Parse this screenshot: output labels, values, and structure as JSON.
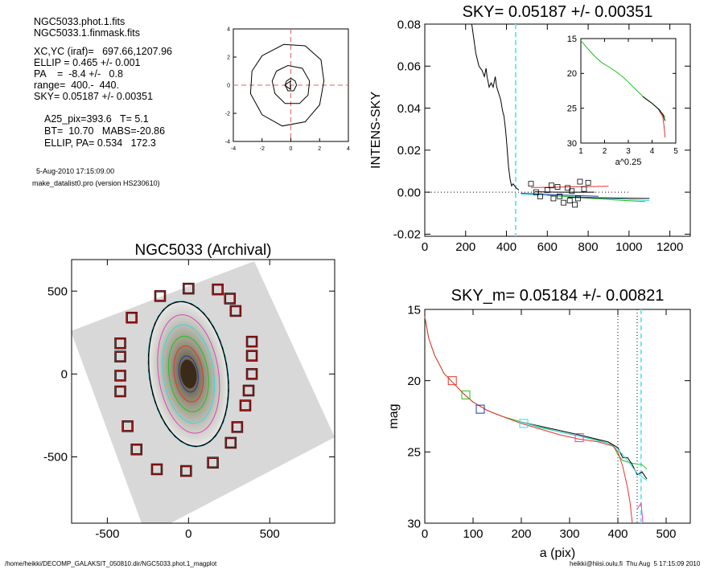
{
  "info": {
    "lines": [
      "NGC5033.phot.1.fits",
      "NGC5033.1.finmask.fits",
      "XC,YC (iraf)=   697.66,1207.96",
      "ELLIP = 0.465 +/- 0.001",
      "PA    =  -8.4 +/-   0.8",
      "range=  400.-  440.",
      "SKY= 0.05187 +/- 0.00351",
      "A25_pix=393.6   T= 5.1",
      "BT=  10.70   MABS=-20.86",
      "ELLIP, PA= 0.534   172.3",
      "5-Aug-2010 17:15:09.00",
      "make_datalist0.pro (version HS230610)"
    ]
  },
  "footer": {
    "left": "/home/heikki/DECOMP_GALAKSIT_050810.dir/NGC5033.phot.1_magplot",
    "right": "heikki@hiisi.oulu.fi  Thu Aug  5 17:15:09 2010"
  },
  "colors": {
    "black": "#000000",
    "red": "#e8322b",
    "green": "#1fc21f",
    "cyan": "#33d9e6",
    "blue": "#2233aa",
    "magenta": "#e040c0",
    "dashcyan": "#6fe6f0",
    "pink": "#e06060"
  },
  "chart_data": [
    {
      "id": "center_plot",
      "type": "line",
      "title": "",
      "xlabel": "",
      "ylabel": "",
      "xlim": [
        -4,
        4
      ],
      "ylim": [
        -4,
        4
      ],
      "xticks": [
        "-4",
        "-2",
        "0",
        "2",
        "4"
      ],
      "yticks": [
        "-4",
        "-2",
        "0",
        "2",
        "4"
      ],
      "contours": [
        [
          [
            -0.3,
            0.3
          ],
          [
            0,
            0.5
          ],
          [
            0.3,
            0.3
          ],
          [
            0.4,
            0
          ],
          [
            0.2,
            -0.4
          ],
          [
            -0.2,
            -0.4
          ],
          [
            -0.4,
            0
          ],
          [
            -0.3,
            0.3
          ]
        ],
        [
          [
            -1.0,
            1.0
          ],
          [
            -0.2,
            1.4
          ],
          [
            0.8,
            1.2
          ],
          [
            1.3,
            0.3
          ],
          [
            1.2,
            -0.7
          ],
          [
            0.6,
            -1.3
          ],
          [
            -0.4,
            -1.3
          ],
          [
            -1.1,
            -0.6
          ],
          [
            -1.3,
            0.3
          ],
          [
            -1.0,
            1.0
          ]
        ],
        [
          [
            -2.0,
            2.1
          ],
          [
            -0.5,
            2.9
          ],
          [
            1.0,
            2.8
          ],
          [
            2.1,
            1.8
          ],
          [
            2.3,
            0.3
          ],
          [
            2.0,
            -1.4
          ],
          [
            1.0,
            -2.6
          ],
          [
            -0.6,
            -2.9
          ],
          [
            -2.0,
            -2.1
          ],
          [
            -2.8,
            -0.6
          ],
          [
            -2.7,
            1.0
          ],
          [
            -2.0,
            2.1
          ]
        ]
      ]
    },
    {
      "id": "sky_plot",
      "type": "line",
      "title": "SKY= 0.05187 +/- 0.00351",
      "xlabel": "",
      "ylabel": "INTENS-SKY",
      "xlim": [
        0,
        1300
      ],
      "ylim": [
        -0.021,
        0.08
      ],
      "xticks": [
        "0",
        "200",
        "400",
        "600",
        "800",
        "1000",
        "1200"
      ],
      "yticks": [
        "-0.02",
        "0.00",
        "0.02",
        "0.04",
        "0.06",
        "0.08"
      ],
      "vline": 445,
      "series": [
        {
          "color": "black",
          "values": [
            [
              230,
              0.08
            ],
            [
              250,
              0.066
            ],
            [
              265,
              0.06
            ],
            [
              280,
              0.058
            ],
            [
              292,
              0.055
            ],
            [
              300,
              0.059
            ],
            [
              305,
              0.055
            ],
            [
              315,
              0.05
            ],
            [
              325,
              0.052
            ],
            [
              335,
              0.05
            ],
            [
              345,
              0.055
            ],
            [
              352,
              0.05
            ],
            [
              362,
              0.047
            ],
            [
              372,
              0.044
            ],
            [
              380,
              0.039
            ],
            [
              388,
              0.036
            ],
            [
              395,
              0.03
            ],
            [
              400,
              0.025
            ],
            [
              410,
              0.012
            ],
            [
              418,
              0.006
            ],
            [
              425,
              0.003
            ],
            [
              432,
              0.004
            ],
            [
              440,
              0.003
            ],
            [
              448,
              0.002
            ],
            [
              455,
              0.0015
            ],
            [
              460,
              0.001
            ]
          ]
        },
        {
          "color": "red",
          "values": [
            [
              520,
              0.0022
            ],
            [
              900,
              0.0028
            ]
          ]
        },
        {
          "color": "black",
          "values": [
            [
              540,
              0.0002
            ],
            [
              650,
              0.0
            ],
            [
              780,
              0.0
            ],
            [
              830,
              0.0
            ]
          ]
        },
        {
          "color": "blue",
          "values": [
            [
              470,
              -0.0005
            ],
            [
              700,
              -0.0015
            ],
            [
              850,
              -0.002
            ]
          ]
        },
        {
          "color": "cyan",
          "values": [
            [
              470,
              -0.001
            ],
            [
              800,
              -0.0025
            ],
            [
              1100,
              -0.004
            ]
          ]
        },
        {
          "color": "green",
          "values": [
            [
              600,
              -0.0015
            ],
            [
              900,
              -0.0035
            ],
            [
              1080,
              -0.0045
            ]
          ]
        },
        {
          "color": "black",
          "values": [
            [
              700,
              -0.0025
            ],
            [
              1100,
              -0.003
            ]
          ]
        }
      ],
      "squares": [
        [
          520,
          0.004
        ],
        [
          545,
          0.0
        ],
        [
          565,
          -0.002
        ],
        [
          600,
          0.001
        ],
        [
          620,
          0.0032
        ],
        [
          630,
          -0.003
        ],
        [
          650,
          0.0025
        ],
        [
          660,
          -0.002
        ],
        [
          680,
          -0.005
        ],
        [
          700,
          0.002
        ],
        [
          710,
          -0.004
        ],
        [
          720,
          0.0005
        ],
        [
          735,
          -0.006
        ],
        [
          750,
          -0.003
        ],
        [
          760,
          0.005
        ],
        [
          780,
          0.0015
        ],
        [
          800,
          0.0045
        ]
      ],
      "inset": {
        "xlabel": "a^0.25",
        "xlim": [
          1,
          5
        ],
        "ylim": [
          30,
          15
        ],
        "xticks": [
          "1",
          "2",
          "3",
          "4",
          "5"
        ],
        "yticks": [
          "15",
          "20",
          "25",
          "30"
        ],
        "series": [
          {
            "color": "green",
            "values": [
              [
                1.0,
                15.3
              ],
              [
                1.3,
                16.5
              ],
              [
                1.6,
                17.6
              ],
              [
                1.9,
                18.5
              ],
              [
                2.2,
                19.1
              ],
              [
                2.5,
                19.8
              ],
              [
                2.8,
                20.6
              ],
              [
                3.1,
                21.6
              ],
              [
                3.4,
                22.6
              ],
              [
                3.7,
                23.6
              ],
              [
                4.0,
                24.3
              ],
              [
                4.2,
                24.9
              ],
              [
                4.35,
                25.5
              ],
              [
                4.45,
                25.8
              ],
              [
                4.55,
                26.3
              ]
            ]
          },
          {
            "color": "black",
            "values": [
              [
                3.6,
                23.3
              ],
              [
                4.0,
                24.3
              ],
              [
                4.3,
                25.2
              ],
              [
                4.45,
                25.9
              ],
              [
                4.55,
                26.8
              ]
            ]
          },
          {
            "color": "red",
            "values": [
              [
                4.3,
                25.4
              ],
              [
                4.45,
                26.2
              ],
              [
                4.5,
                27.5
              ],
              [
                4.55,
                29.2
              ]
            ]
          }
        ]
      }
    },
    {
      "id": "image_panel",
      "type": "scatter",
      "title": "NGC5033 (Archival)",
      "xlabel": "",
      "ylabel": "",
      "xlim": [
        -720,
        900
      ],
      "ylim": [
        -900,
        690
      ],
      "xticks": [
        "-500",
        "0",
        "500"
      ],
      "yticks": [
        "-500",
        "0",
        "500"
      ],
      "sky_boxes": [
        [
          0,
          515
        ],
        [
          -175,
          470
        ],
        [
          180,
          510
        ],
        [
          255,
          455
        ],
        [
          290,
          380
        ],
        [
          -350,
          340
        ],
        [
          -420,
          185
        ],
        [
          -420,
          105
        ],
        [
          -420,
          -10
        ],
        [
          -420,
          -105
        ],
        [
          390,
          195
        ],
        [
          390,
          110
        ],
        [
          390,
          0
        ],
        [
          370,
          -100
        ],
        [
          350,
          -190
        ],
        [
          300,
          -320
        ],
        [
          260,
          -415
        ],
        [
          150,
          -535
        ],
        [
          -15,
          -585
        ],
        [
          -195,
          -575
        ],
        [
          -320,
          -455
        ],
        [
          -375,
          -315
        ]
      ],
      "ellipses": [
        {
          "color": "black",
          "a": 440,
          "b": 240
        },
        {
          "color": "dashcyan",
          "a": 445,
          "b": 245
        },
        {
          "color": "magenta",
          "a": 360,
          "b": 185
        },
        {
          "color": "cyan",
          "a": 300,
          "b": 155
        },
        {
          "color": "green",
          "a": 230,
          "b": 120
        },
        {
          "color": "red",
          "a": 170,
          "b": 88
        },
        {
          "color": "blue",
          "a": 110,
          "b": 58
        }
      ]
    },
    {
      "id": "mag_plot",
      "type": "line",
      "title": "SKY_m=  0.05184 +/- 0.00821",
      "xlabel": "a (pix)",
      "ylabel": "mag",
      "xlim": [
        0,
        550
      ],
      "ylim": [
        30,
        15
      ],
      "xticks": [
        "0",
        "100",
        "200",
        "300",
        "400",
        "500"
      ],
      "yticks": [
        "15",
        "20",
        "25",
        "30"
      ],
      "vlines_dotted": [
        400,
        440
      ],
      "vline_dashed": 448,
      "series": [
        {
          "color": "green",
          "values": [
            [
              0,
              15.5
            ],
            [
              8,
              17.0
            ],
            [
              20,
              18.2
            ],
            [
              40,
              19.5
            ],
            [
              60,
              20.2
            ],
            [
              80,
              20.9
            ],
            [
              100,
              21.5
            ],
            [
              130,
              22.1
            ],
            [
              160,
              22.5
            ],
            [
              200,
              22.9
            ],
            [
              240,
              23.3
            ],
            [
              280,
              23.6
            ],
            [
              320,
              23.9
            ],
            [
              360,
              24.2
            ],
            [
              390,
              24.5
            ],
            [
              400,
              25.2
            ],
            [
              410,
              25.6
            ],
            [
              430,
              25.8
            ],
            [
              450,
              25.9
            ],
            [
              460,
              26.2
            ]
          ]
        },
        {
          "color": "black",
          "values": [
            [
              200,
              22.9
            ],
            [
              280,
              23.5
            ],
            [
              320,
              23.8
            ],
            [
              380,
              24.3
            ],
            [
              400,
              24.7
            ],
            [
              410,
              25.4
            ],
            [
              420,
              25.4
            ],
            [
              430,
              25.9
            ],
            [
              440,
              26.6
            ],
            [
              450,
              26.4
            ],
            [
              460,
              26.9
            ]
          ]
        },
        {
          "color": "cyan",
          "values": [
            [
              200,
              22.9
            ],
            [
              280,
              23.6
            ],
            [
              320,
              23.9
            ],
            [
              380,
              24.4
            ],
            [
              400,
              24.8
            ],
            [
              420,
              25.6
            ],
            [
              440,
              26.5
            ],
            [
              460,
              27.0
            ]
          ]
        },
        {
          "color": "red",
          "values": [
            [
              0,
              15.5
            ],
            [
              8,
              17.0
            ],
            [
              20,
              18.2
            ],
            [
              40,
              19.5
            ],
            [
              60,
              20.2
            ],
            [
              80,
              20.9
            ],
            [
              100,
              21.5
            ],
            [
              130,
              22.1
            ],
            [
              160,
              22.5
            ],
            [
              200,
              23.0
            ],
            [
              240,
              23.4
            ],
            [
              280,
              23.8
            ],
            [
              320,
              24.1
            ],
            [
              360,
              24.3
            ],
            [
              390,
              24.6
            ],
            [
              400,
              25.0
            ],
            [
              410,
              26.0
            ],
            [
              420,
              27.5
            ],
            [
              425,
              28.5
            ],
            [
              430,
              30
            ]
          ]
        },
        {
          "color": "magenta",
          "values": [
            [
              440,
              29.0
            ],
            [
              448,
              28.6
            ],
            [
              452,
              30
            ]
          ]
        }
      ],
      "squares": [
        {
          "color": "red",
          "x": 57,
          "y": 20.0
        },
        {
          "color": "green",
          "x": 85,
          "y": 21.0
        },
        {
          "color": "blue",
          "x": 115,
          "y": 22.0
        },
        {
          "color": "cyan",
          "x": 205,
          "y": 23.0
        },
        {
          "color": "magenta",
          "x": 320,
          "y": 24.0
        }
      ]
    }
  ]
}
